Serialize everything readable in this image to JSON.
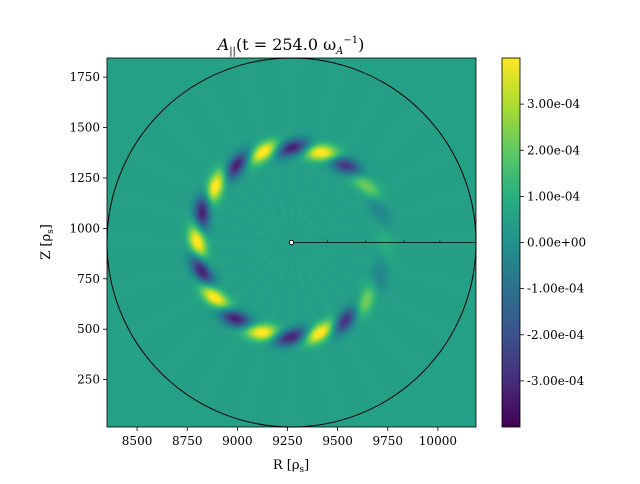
{
  "chart_data": {
    "type": "heatmap",
    "title_parts": {
      "var": "A",
      "sub": "||",
      "open": "(t = 254.0 ω",
      "sub2": "A",
      "sup": "−1",
      "close": ")"
    },
    "xlabel": "R [ρs]",
    "ylabel": "Z [ρs]",
    "xlabel_parts": {
      "main": "R [ρ",
      "sub": "s",
      "end": "]"
    },
    "ylabel_parts": {
      "main": "Z [ρ",
      "sub": "s",
      "end": "]"
    },
    "xlim": [
      8350,
      10190
    ],
    "ylim": [
      15,
      1845
    ],
    "x_ticks": [
      8500,
      8750,
      9000,
      9250,
      9500,
      9750,
      10000
    ],
    "x_tick_labels": [
      "8500",
      "8750",
      "9000",
      "9250",
      "9500",
      "9750",
      "10000"
    ],
    "y_ticks": [
      250,
      500,
      750,
      1000,
      1250,
      1500,
      1750
    ],
    "y_tick_labels": [
      "250",
      "500",
      "750",
      "1000",
      "1250",
      "1500",
      "1750"
    ],
    "domain": {
      "center": [
        9270,
        930
      ],
      "radius": 920
    },
    "axis_point": [
      9270,
      930
    ],
    "probe_line": {
      "from": [
        9270,
        930
      ],
      "to": [
        10190,
        930
      ],
      "tick_r": [
        9450,
        9640,
        9830,
        10010
      ]
    },
    "colorbar": {
      "range": [
        -0.0004,
        0.0004
      ],
      "ticks": [
        0.0003,
        0.0002,
        0.0001,
        0.0,
        -0.0001,
        -0.0002,
        -0.0003
      ],
      "tick_labels": [
        "3.00e-04",
        "2.00e-04",
        "1.00e-04",
        "0.00e+00",
        "-1.00e-04",
        "-2.00e-04",
        "-3.00e-04"
      ],
      "colormap": "viridis"
    },
    "mode_ring": {
      "ring_radius": 470,
      "mode_number": 10,
      "amplitude": 0.00038,
      "angular_width": 42,
      "radial_width": 45,
      "phase_deg": 4,
      "fade_start_deg": 60,
      "fade_end_deg": -30
    },
    "background_value": 5e-05
  }
}
